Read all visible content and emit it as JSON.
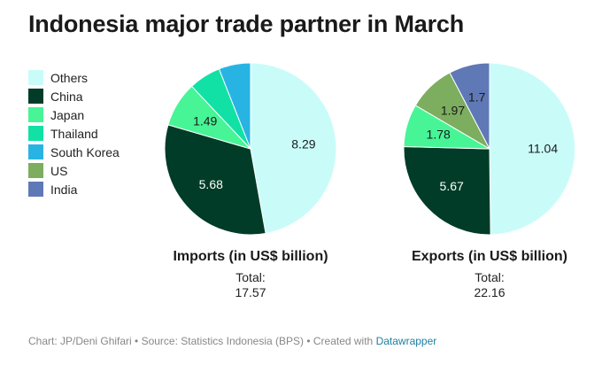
{
  "chart_data": {
    "type": "pie",
    "title": "Indonesia major trade partner in March",
    "legend": {
      "placement": "left",
      "entries": [
        {
          "name": "Others",
          "color": "#c9fcf9"
        },
        {
          "name": "China",
          "color": "#003c27"
        },
        {
          "name": "Japan",
          "color": "#47f596"
        },
        {
          "name": "Thailand",
          "color": "#12e1a6"
        },
        {
          "name": "South Korea",
          "color": "#27b4e3"
        },
        {
          "name": "US",
          "color": "#7dad5f"
        },
        {
          "name": "India",
          "color": "#5f79b6"
        }
      ]
    },
    "pies": [
      {
        "name": "Imports (in US$ billion)",
        "total_label": "Total:",
        "total": "17.57",
        "slices": [
          {
            "category": "Others",
            "value": 8.29,
            "label": "8.29"
          },
          {
            "category": "China",
            "value": 5.68,
            "label": "5.68"
          },
          {
            "category": "Japan",
            "value": 1.49,
            "label": "1.49"
          },
          {
            "category": "Thailand",
            "value": 1.06,
            "label": ""
          },
          {
            "category": "South Korea",
            "value": 1.05,
            "label": ""
          }
        ]
      },
      {
        "name": "Exports (in US$ billion)",
        "total_label": "Total:",
        "total": "22.16",
        "slices": [
          {
            "category": "Others",
            "value": 11.04,
            "label": "11.04"
          },
          {
            "category": "China",
            "value": 5.67,
            "label": "5.67"
          },
          {
            "category": "Japan",
            "value": 1.78,
            "label": "1.78"
          },
          {
            "category": "US",
            "value": 1.97,
            "label": "1.97"
          },
          {
            "category": "India",
            "value": 1.7,
            "label": "1.7"
          }
        ]
      }
    ]
  },
  "footer": {
    "credit": "Chart: JP/Deni Ghifari • Source: Statistics Indonesia (BPS) • Created with ",
    "credit_link": "Datawrapper"
  }
}
